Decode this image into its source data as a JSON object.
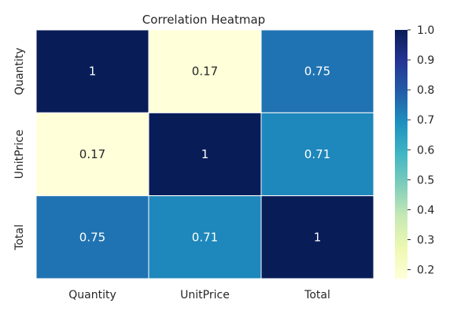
{
  "chart_data": {
    "type": "heatmap",
    "title": "Correlation Heatmap",
    "x_categories": [
      "Quantity",
      "UnitPrice",
      "Total"
    ],
    "y_categories": [
      "Quantity",
      "UnitPrice",
      "Total"
    ],
    "values": [
      [
        1,
        0.17,
        0.75
      ],
      [
        0.17,
        1,
        0.71
      ],
      [
        0.75,
        0.71,
        1
      ]
    ],
    "cell_labels": [
      [
        "1",
        "0.17",
        "0.75"
      ],
      [
        "0.17",
        "1",
        "0.71"
      ],
      [
        "0.75",
        "0.71",
        "1"
      ]
    ],
    "colorbar": {
      "min": 0.17,
      "max": 1.0,
      "ticks": [
        "0.2",
        "0.3",
        "0.4",
        "0.5",
        "0.6",
        "0.7",
        "0.8",
        "0.9",
        "1.0"
      ],
      "colormap": "YlGnBu"
    }
  }
}
